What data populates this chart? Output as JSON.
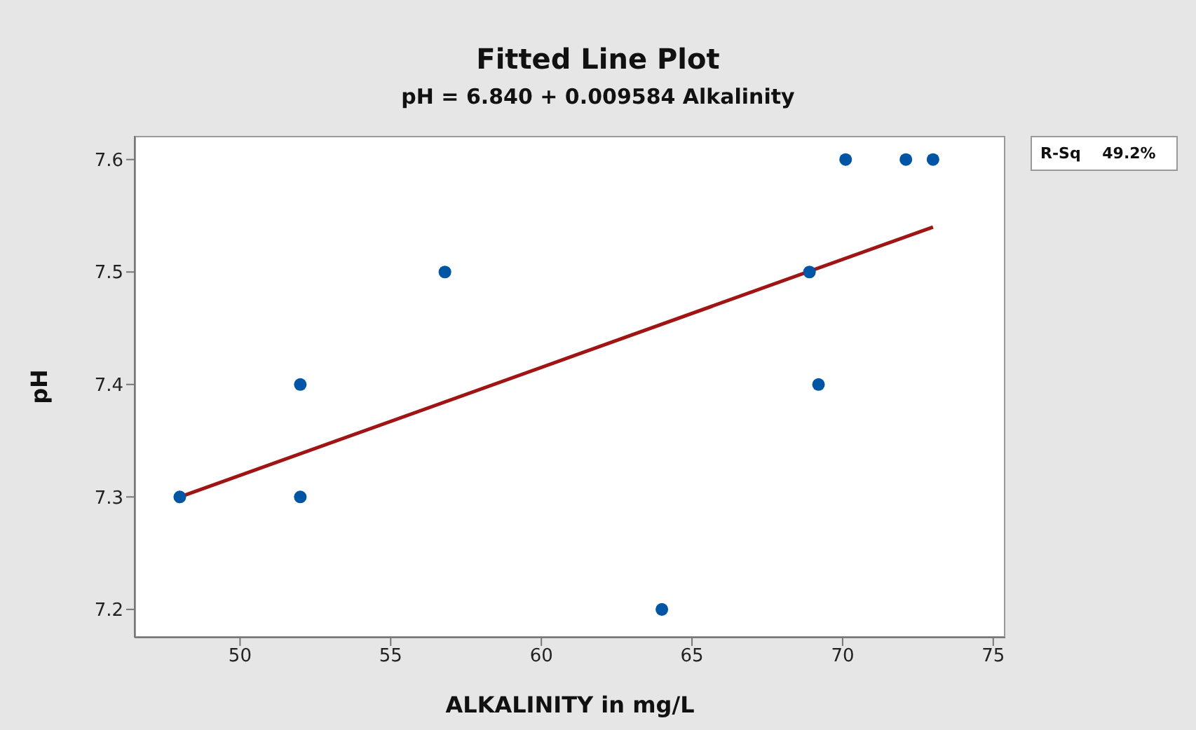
{
  "chart_data": {
    "type": "scatter",
    "title": "Fitted Line Plot",
    "subtitle": "pH = 6.840 + 0.009584 Alkalinity",
    "xlabel": "ALKALINITY in mg/L",
    "ylabel": "pH",
    "series": [
      {
        "color": "#0055a5",
        "marker": "circle",
        "x": [
          48,
          52,
          52,
          56.8,
          64,
          68.9,
          69.2,
          70.1,
          72.1,
          73
        ],
        "values": [
          7.3,
          7.4,
          7.3,
          7.5,
          7.2,
          7.5,
          7.4,
          7.6,
          7.6,
          7.6
        ]
      },
      {
        "type": "line",
        "color": "#a01414",
        "line_style": "solid",
        "x": [
          48,
          73
        ],
        "values": [
          7.3,
          7.54
        ]
      }
    ],
    "xlim": [
      46.5,
      75.4
    ],
    "xticks": [
      50,
      55,
      60,
      65,
      70,
      75
    ],
    "ylim": [
      7.175,
      7.621
    ],
    "yticks": [
      7.2,
      7.3,
      7.4,
      7.5,
      7.6
    ],
    "grid": false,
    "annotations": [
      "R-Sq    49.2%"
    ]
  }
}
